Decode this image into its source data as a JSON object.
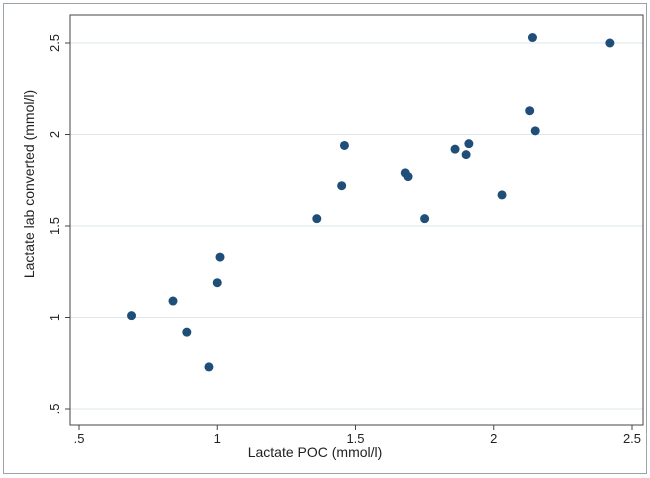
{
  "chart_data": {
    "type": "scatter",
    "title": "",
    "xlabel": "Lactate POC (mmol/l)",
    "ylabel": "Lactate lab converted (mmol/l)",
    "xlim": [
      0.5,
      2.5
    ],
    "ylim": [
      0.5,
      2.5
    ],
    "x_ticks": [
      ".5",
      "1",
      "1.5",
      "2",
      "2.5"
    ],
    "y_ticks": [
      ".5",
      "1",
      "1.5",
      "2",
      "2.5"
    ],
    "grid": "horizontal",
    "marker_color": "#1f4e79",
    "gridline_color": "#dde7ec",
    "points": [
      {
        "x": 0.69,
        "y": 1.01
      },
      {
        "x": 0.84,
        "y": 1.09
      },
      {
        "x": 0.89,
        "y": 0.92
      },
      {
        "x": 0.97,
        "y": 0.73
      },
      {
        "x": 1.0,
        "y": 1.19
      },
      {
        "x": 1.01,
        "y": 1.33
      },
      {
        "x": 1.36,
        "y": 1.54
      },
      {
        "x": 1.45,
        "y": 1.72
      },
      {
        "x": 1.46,
        "y": 1.94
      },
      {
        "x": 1.68,
        "y": 1.79
      },
      {
        "x": 1.69,
        "y": 1.77
      },
      {
        "x": 1.75,
        "y": 1.54
      },
      {
        "x": 1.86,
        "y": 1.92
      },
      {
        "x": 1.9,
        "y": 1.89
      },
      {
        "x": 1.91,
        "y": 1.95
      },
      {
        "x": 2.03,
        "y": 1.67
      },
      {
        "x": 2.13,
        "y": 2.13
      },
      {
        "x": 2.14,
        "y": 2.53
      },
      {
        "x": 2.15,
        "y": 2.02
      },
      {
        "x": 2.42,
        "y": 2.5
      }
    ]
  }
}
